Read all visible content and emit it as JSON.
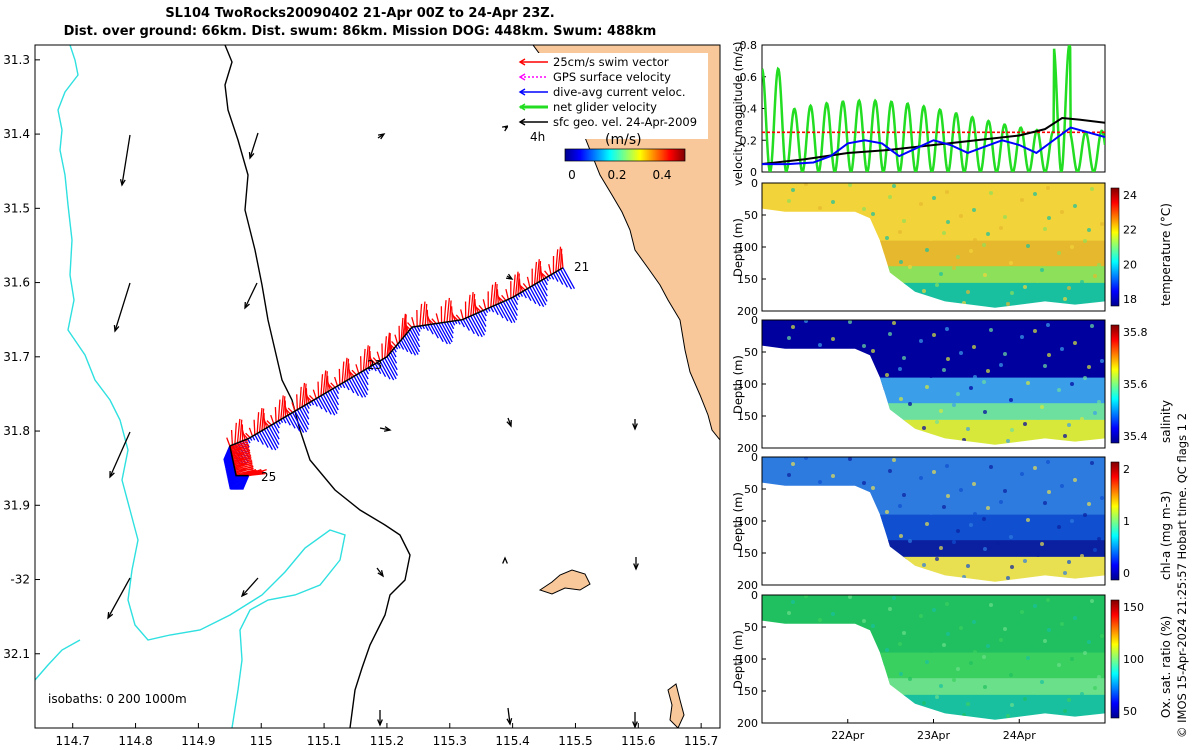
{
  "header": {
    "title": "SL104 TwoRocks20090402 21-Apr 00Z to 24-Apr 23Z.",
    "subtitle": "Dist. over ground: 66km. Dist. swum: 86km. Mission DOG: 448km. Swum: 488km"
  },
  "colors": {
    "land": "#F9C89A",
    "isobath_0": "#000000",
    "isobath_200": "#000000",
    "isobath_1000": "#2FE0E0",
    "swim": "#FF0000",
    "current": "#0000FF",
    "net": "#22DD22",
    "gps": "#FF00FF",
    "track": "#000000"
  },
  "map": {
    "legend": [
      {
        "label": "25cm/s swim vector",
        "color": "#FF0000"
      },
      {
        "label": "GPS surface velocity",
        "color": "#FF00FF"
      },
      {
        "label": "dive-avg current veloc.",
        "color": "#0000FF"
      },
      {
        "label": "net glider velocity",
        "color": "#22DD22"
      },
      {
        "label": "sfc geo. vel. 24-Apr-2009",
        "color": "#000000"
      }
    ],
    "colorbar": {
      "title": "(m/s)",
      "ticks": [
        "0",
        "0.2",
        "0.4"
      ],
      "age_label": "4h"
    },
    "isobath_label": "isobaths: 0   200  1000m",
    "day_labels": [
      "21",
      "23",
      "25"
    ]
  },
  "chart_data": [
    {
      "type": "map",
      "x_ticks": [
        114.7,
        114.8,
        114.9,
        115,
        115.1,
        115.2,
        115.3,
        115.4,
        115.5,
        115.6,
        115.7
      ],
      "y_ticks": [
        -31.3,
        -31.4,
        -31.5,
        -31.6,
        -31.7,
        -31.8,
        -31.9,
        -32,
        -32.1
      ],
      "y_tick_labels": [
        "31.3",
        "31.4",
        "31.5",
        "31.6",
        "31.7",
        "31.8",
        "31.9",
        "-32",
        "32.1"
      ],
      "xlim": [
        114.64,
        115.73
      ],
      "ylim": [
        -32.2,
        -31.28
      ],
      "glider_track": [
        [
          115.48,
          -31.58
        ],
        [
          115.4,
          -31.62
        ],
        [
          115.32,
          -31.65
        ],
        [
          115.24,
          -31.66
        ],
        [
          115.2,
          -31.7
        ],
        [
          115.12,
          -31.74
        ],
        [
          115.04,
          -31.78
        ],
        [
          114.98,
          -31.81
        ],
        [
          114.95,
          -31.82
        ]
      ],
      "track_tail": [
        [
          114.95,
          -31.82
        ],
        [
          114.96,
          -31.86
        ],
        [
          114.98,
          -31.86
        ]
      ]
    },
    {
      "type": "line",
      "title": "",
      "ylabel": "velocity magnitude (m/s)",
      "ylim": [
        0,
        0.8
      ],
      "y_ticks": [
        0,
        0.2,
        0.4,
        0.6,
        0.8
      ],
      "xlim": [
        0,
        4
      ],
      "series": [
        {
          "name": "dive-avg current",
          "color": "#0000FF",
          "x": [
            0,
            0.3,
            0.6,
            0.8,
            1.0,
            1.2,
            1.4,
            1.6,
            1.8,
            2.0,
            2.2,
            2.4,
            2.6,
            2.8,
            3.0,
            3.2,
            3.4,
            3.6,
            3.8,
            4.0
          ],
          "y": [
            0.05,
            0.05,
            0.06,
            0.1,
            0.18,
            0.2,
            0.18,
            0.1,
            0.15,
            0.2,
            0.17,
            0.12,
            0.16,
            0.2,
            0.17,
            0.12,
            0.2,
            0.28,
            0.25,
            0.22
          ]
        },
        {
          "name": "sfc geo. vel.",
          "color": "#000000",
          "x": [
            0,
            0.5,
            1.0,
            1.5,
            2.0,
            2.5,
            3.0,
            3.3,
            3.5,
            3.7,
            4.0
          ],
          "y": [
            0.05,
            0.08,
            0.12,
            0.14,
            0.17,
            0.2,
            0.23,
            0.27,
            0.34,
            0.33,
            0.31
          ]
        },
        {
          "name": "25cm/s swim",
          "color": "#FF0000",
          "x": [
            0,
            4
          ],
          "y": [
            0.25,
            0.25
          ]
        }
      ]
    },
    {
      "type": "heatmap",
      "variable": "temperature",
      "ylabel": "Depth (m)",
      "clabel": "temperature (°C)",
      "ylim": [
        200,
        0
      ],
      "y_ticks": [
        0,
        50,
        100,
        150,
        200
      ],
      "cticks": [
        18,
        20,
        22,
        24
      ]
    },
    {
      "type": "heatmap",
      "variable": "salinity",
      "ylabel": "Depth (m)",
      "clabel": "salinity",
      "ylim": [
        200,
        0
      ],
      "y_ticks": [
        0,
        50,
        100,
        150,
        200
      ],
      "cticks": [
        35.4,
        35.6,
        35.8
      ]
    },
    {
      "type": "heatmap",
      "variable": "chl-a",
      "ylabel": "Depth (m)",
      "clabel": "chl-a (mg m-3)",
      "ylim": [
        200,
        0
      ],
      "y_ticks": [
        0,
        50,
        100,
        150,
        200
      ],
      "cticks": [
        0,
        1,
        2
      ]
    },
    {
      "type": "heatmap",
      "variable": "oxygen",
      "ylabel": "Depth (m)",
      "clabel": "Ox. sat. ratio (%)",
      "ylim": [
        200,
        0
      ],
      "y_ticks": [
        0,
        50,
        100,
        150,
        200
      ],
      "cticks": [
        50,
        100,
        150
      ],
      "x_tick_labels": [
        "22Apr",
        "23Apr",
        "24Apr"
      ]
    }
  ],
  "footer": {
    "qc_note": "© IMOS 15-Apr-2024 21:25:57 Hobart time. QC flags 1  2"
  }
}
